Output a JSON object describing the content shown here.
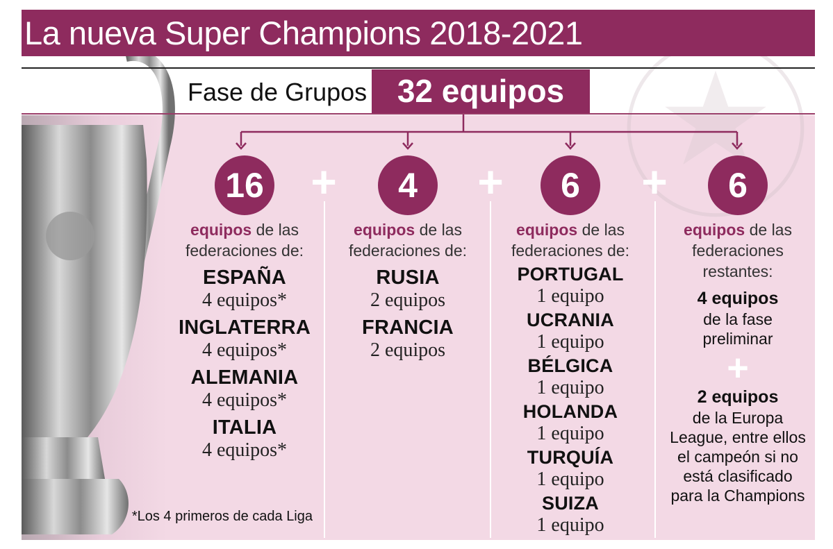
{
  "title": "La nueva Super Champions 2018-2021",
  "phase_label": "Fase de Grupos",
  "total_label": "32 equipos",
  "columns": [
    {
      "number": "16",
      "intro_accent": "equipos",
      "intro_rest_1": " de las",
      "intro_line_2": "federaciones de:",
      "countries": [
        {
          "name": "ESPAÑA",
          "count": "4 equipos*"
        },
        {
          "name": "INGLATERRA",
          "count": "4 equipos*"
        },
        {
          "name": "ALEMANIA",
          "count": "4 equipos*"
        },
        {
          "name": "ITALIA",
          "count": "4 equipos*"
        }
      ]
    },
    {
      "number": "4",
      "intro_accent": "equipos",
      "intro_rest_1": " de las",
      "intro_line_2": "federaciones de:",
      "countries": [
        {
          "name": "RUSIA",
          "count": "2 equipos"
        },
        {
          "name": "FRANCIA",
          "count": "2 equipos"
        }
      ]
    },
    {
      "number": "6",
      "intro_accent": "equipos",
      "intro_rest_1": " de las",
      "intro_line_2": "federaciones de:",
      "countries": [
        {
          "name": "PORTUGAL",
          "count": "1 equipo"
        },
        {
          "name": "UCRANIA",
          "count": "1 equipo"
        },
        {
          "name": "BÉLGICA",
          "count": "1 equipo"
        },
        {
          "name": "HOLANDA",
          "count": "1 equipo"
        },
        {
          "name": "TURQUÍA",
          "count": "1 equipo"
        },
        {
          "name": "SUIZA",
          "count": "1 equipo"
        }
      ]
    },
    {
      "number": "6",
      "intro_accent": "equipos",
      "intro_rest_1": " de las",
      "intro_line_2": "federaciones",
      "intro_line_3": "restantes:",
      "block1_big": "4 equipos",
      "block1_l1": "de la fase",
      "block1_l2": "preliminar",
      "plus": "+",
      "block2_big": "2 equipos",
      "block2_l1": "de la Europa",
      "block2_l2": "League, entre ellos",
      "block2_l3": "el campeón si no",
      "block2_l4": "está clasificado",
      "block2_l5": "para la Champions"
    }
  ],
  "plus_sign": "+",
  "footnote": "*Los 4 primeros de cada Liga",
  "colors": {
    "accent": "#8e2b5e",
    "panel": "#f3d9e5"
  }
}
